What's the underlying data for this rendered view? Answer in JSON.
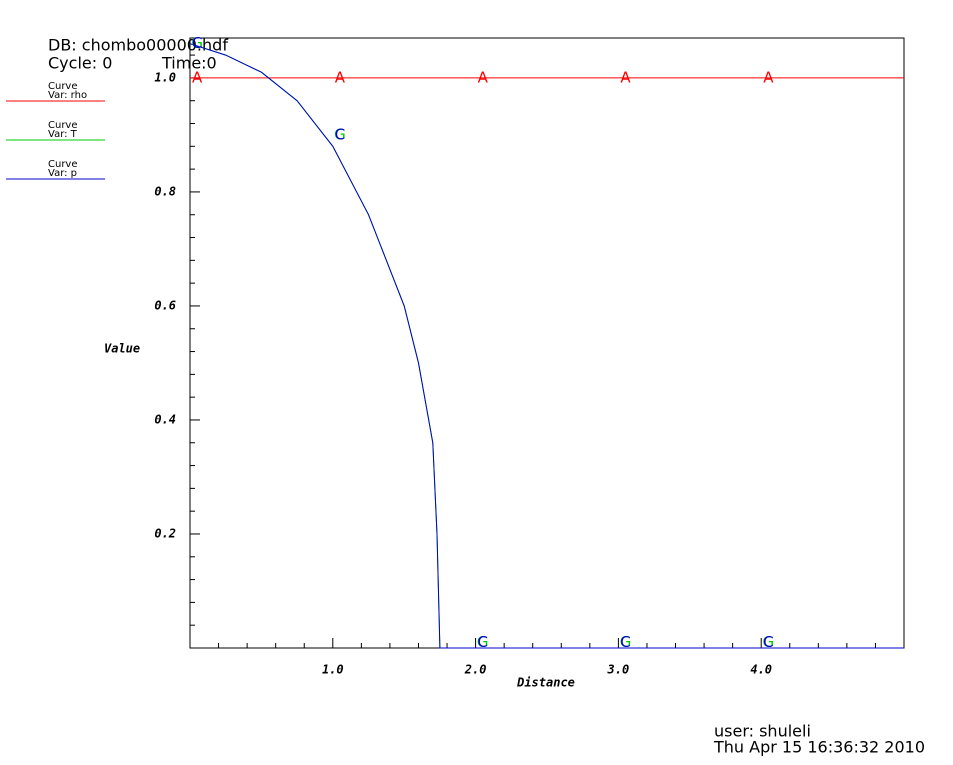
{
  "header": {
    "db": "DB: chombo00000.hdf",
    "cycle": "Cycle: 0",
    "time": "Time:0"
  },
  "footer": {
    "user": "user: shuleli",
    "date": "Thu Apr 15 16:36:32 2010"
  },
  "chart_data": {
    "type": "line",
    "xlabel": "Distance",
    "ylabel": "Value",
    "xlim": [
      0,
      5
    ],
    "ylim": [
      0,
      1.07
    ],
    "xticks": [
      {
        "value": 1,
        "label": "1.0"
      },
      {
        "value": 2,
        "label": "2.0"
      },
      {
        "value": 3,
        "label": "3.0"
      },
      {
        "value": 4,
        "label": "4.0"
      }
    ],
    "yticks": [
      {
        "value": 0.2,
        "label": "0.2"
      },
      0.4,
      0.6,
      0.8,
      {
        "value": 1,
        "label": "1.0"
      }
    ],
    "xminorticks": [
      0.2,
      0.4,
      0.6,
      0.8,
      1.2,
      1.4,
      1.6,
      1.8,
      2.2,
      2.4,
      2.6,
      2.8,
      3.2,
      3.4,
      3.6,
      3.8,
      4.2,
      4.4,
      4.6,
      4.8
    ],
    "yminorticks": [
      0.04,
      0.08,
      0.12,
      0.16,
      0.24,
      0.28,
      0.32,
      0.36,
      0.44,
      0.48,
      0.52,
      0.56,
      0.64,
      0.68,
      0.72,
      0.76,
      0.84,
      0.88,
      0.92,
      0.96,
      1.04
    ],
    "series": [
      {
        "legend_title": "Curve",
        "name": "Var: rho",
        "color": "#ff0000",
        "x": [
          0,
          5
        ],
        "values": [
          1,
          1
        ],
        "markers": {
          "label": "A",
          "x": [
            0.05,
            1.05,
            2.05,
            3.05,
            4.05
          ],
          "y": [
            1,
            1,
            1,
            1,
            1
          ]
        }
      },
      {
        "legend_title": "Curve",
        "name": "Var: T",
        "color": "#00cc00",
        "x": [
          0,
          0.25,
          0.5,
          0.75,
          1.0,
          1.25,
          1.5,
          1.6,
          1.7,
          1.73,
          1.75,
          2.0,
          3.0,
          4.0,
          5.0
        ],
        "values": [
          1.06,
          1.04,
          1.01,
          0.96,
          0.88,
          0.76,
          0.6,
          0.5,
          0.36,
          0.2,
          0,
          0,
          0,
          0,
          0
        ],
        "markers": {
          "label": "G",
          "x": [
            0.05,
            1.05,
            2.05,
            3.05,
            4.05
          ],
          "y": [
            1.06,
            0.9,
            0.01,
            0.01,
            0.01
          ]
        }
      },
      {
        "legend_title": "Curve",
        "name": "Var: p",
        "color": "#0000cc",
        "x": [
          0,
          0.25,
          0.5,
          0.75,
          1.0,
          1.25,
          1.5,
          1.6,
          1.7,
          1.73,
          1.75,
          2.0,
          3.0,
          4.0,
          5.0
        ],
        "values": [
          1.06,
          1.04,
          1.01,
          0.96,
          0.88,
          0.76,
          0.6,
          0.5,
          0.36,
          0.2,
          0,
          0,
          0,
          0,
          0
        ],
        "markers": {
          "label": "C",
          "x": [
            0.05,
            1.05,
            2.05,
            3.05,
            4.05
          ],
          "y": [
            1.06,
            0.9,
            0.01,
            0.01,
            0.01
          ]
        }
      }
    ]
  }
}
